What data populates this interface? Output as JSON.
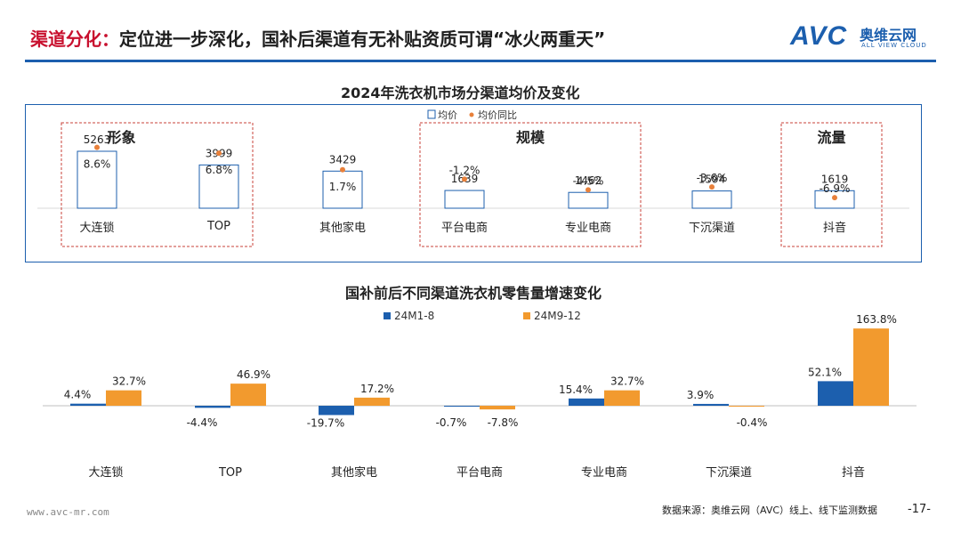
{
  "header": {
    "title_accent": "渠道分化：",
    "title_rest": "定位进一步深化，国补后渠道有无补贴资质可谓“冰火两重天”",
    "logo_mark": "AVC",
    "logo_cn": "奥维云网",
    "logo_en": "ALL VIEW CLOUD"
  },
  "colors": {
    "brand_blue": "#1c5fae",
    "accent_red": "#c8102e",
    "series_1": "#1c5fae",
    "series_2": "#f29a2e",
    "dot_orange": "#e8803a",
    "group_border": "#c8423a"
  },
  "chart_data": [
    {
      "type": "bar",
      "title": "2024年洗衣机市场分渠道均价及变化",
      "categories": [
        "大连锁",
        "TOP",
        "其他家电",
        "平台电商",
        "专业电商",
        "下沉渠道",
        "抖音"
      ],
      "series": [
        {
          "name": "均价",
          "values": [
            5263,
            3999,
            3429,
            1639,
            1462,
            1594,
            1619
          ]
        },
        {
          "name": "均价同比",
          "values": [
            8.6,
            6.8,
            1.7,
            -1.2,
            -4.5,
            -3.6,
            -6.9
          ],
          "value_labels": [
            "8.6%",
            "6.8%",
            "1.7%",
            "-1.2%",
            "-4.5%",
            "-3.6%",
            "-6.9%"
          ]
        }
      ],
      "groups": [
        {
          "label": "形象",
          "categories": [
            "大连锁",
            "TOP"
          ]
        },
        {
          "label": "规模",
          "categories": [
            "平台电商",
            "专业电商"
          ]
        },
        {
          "label": "流量",
          "categories": [
            "抖音"
          ]
        }
      ],
      "legend_position": "top-center"
    },
    {
      "type": "bar",
      "title": "国补前后不同渠道洗衣机零售量增速变化",
      "categories": [
        "大连锁",
        "TOP",
        "其他家电",
        "平台电商",
        "专业电商",
        "下沉渠道",
        "抖音"
      ],
      "series": [
        {
          "name": "24M1-8",
          "values": [
            4.4,
            -4.4,
            -19.7,
            -0.7,
            15.4,
            3.9,
            52.1
          ],
          "value_labels": [
            "4.4%",
            "-4.4%",
            "-19.7%",
            "-0.7%",
            "15.4%",
            "3.9%",
            "52.1%"
          ]
        },
        {
          "name": "24M9-12",
          "values": [
            32.7,
            46.9,
            17.2,
            -7.8,
            32.7,
            -0.4,
            163.8
          ],
          "value_labels": [
            "32.7%",
            "46.9%",
            "17.2%",
            "-7.8%",
            "32.7%",
            "-0.4%",
            "163.8%"
          ]
        }
      ],
      "legend_position": "top-center"
    }
  ],
  "footer": {
    "url": "www.avc-mr.com",
    "source": "数据来源：奥维云网（AVC）线上、线下监测数据",
    "page": "-17-"
  }
}
